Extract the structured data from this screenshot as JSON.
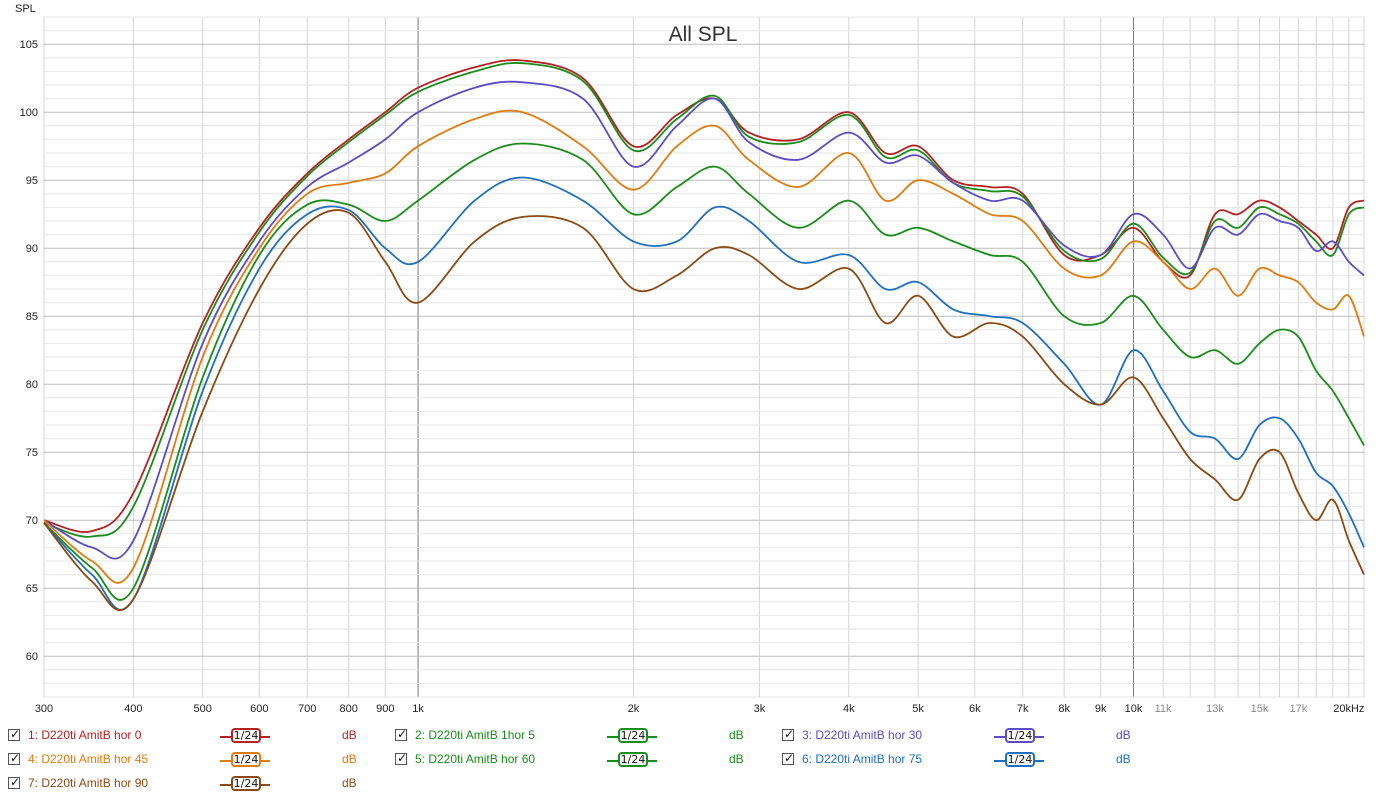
{
  "chart_data": {
    "type": "line",
    "title": "All SPL",
    "ylabel": "SPL",
    "xlabel": "",
    "x_scale": "log",
    "xlim": [
      300,
      21000
    ],
    "ylim": [
      57,
      107
    ],
    "grid": true,
    "y_ticks": [
      "60",
      "65",
      "70",
      "75",
      "80",
      "85",
      "90",
      "95",
      "100",
      "105"
    ],
    "x_ticks": [
      {
        "f": 300,
        "label": "300"
      },
      {
        "f": 400,
        "label": "400"
      },
      {
        "f": 500,
        "label": "500"
      },
      {
        "f": 600,
        "label": "600"
      },
      {
        "f": 700,
        "label": "700"
      },
      {
        "f": 800,
        "label": "800"
      },
      {
        "f": 900,
        "label": "900"
      },
      {
        "f": 1000,
        "label": "1k"
      },
      {
        "f": 2000,
        "label": "2k"
      },
      {
        "f": 3000,
        "label": "3k"
      },
      {
        "f": 4000,
        "label": "4k"
      },
      {
        "f": 5000,
        "label": "5k"
      },
      {
        "f": 6000,
        "label": "6k"
      },
      {
        "f": 7000,
        "label": "7k"
      },
      {
        "f": 8000,
        "label": "8k"
      },
      {
        "f": 9000,
        "label": "9k"
      },
      {
        "f": 10000,
        "label": "10k"
      },
      {
        "f": 11000,
        "label": "11k"
      },
      {
        "f": 13000,
        "label": "13k"
      },
      {
        "f": 15000,
        "label": "15k"
      },
      {
        "f": 17000,
        "label": "17k"
      },
      {
        "f": 20000,
        "label": "20kHz"
      }
    ],
    "x": [
      300,
      350,
      400,
      500,
      600,
      700,
      800,
      900,
      1000,
      1200,
      1400,
      1700,
      2000,
      2300,
      2600,
      2900,
      3400,
      4000,
      4500,
      5000,
      5600,
      6300,
      7000,
      8000,
      9000,
      10000,
      11000,
      12000,
      13000,
      14000,
      15000,
      16000,
      17000,
      18000,
      19000,
      20000,
      21000
    ],
    "series": [
      {
        "name": "1: D220ti AmitB hor 0",
        "color": "#b22222",
        "values": [
          70.0,
          69.2,
          72.0,
          84.5,
          91.5,
          95.5,
          98.0,
          100.0,
          101.8,
          103.3,
          103.8,
          102.5,
          97.5,
          99.8,
          101.0,
          98.5,
          98.0,
          100.0,
          97.0,
          97.5,
          95.0,
          94.5,
          94.0,
          89.5,
          89.5,
          91.5,
          89.0,
          88.0,
          92.5,
          92.5,
          93.5,
          93.0,
          92.0,
          91.0,
          90.0,
          93.0,
          93.5
        ]
      },
      {
        "name": "2: D220ti AmitB 1hor 5",
        "color": "#1a8c1a",
        "values": [
          69.8,
          68.8,
          71.0,
          84.0,
          91.2,
          95.3,
          97.8,
          99.8,
          101.5,
          103.0,
          103.6,
          102.3,
          97.2,
          99.5,
          101.2,
          98.2,
          97.8,
          99.8,
          96.7,
          97.2,
          94.8,
          94.2,
          93.8,
          89.8,
          89.2,
          91.8,
          89.3,
          88.2,
          92.0,
          91.5,
          93.0,
          92.5,
          91.8,
          90.5,
          89.5,
          92.5,
          93.0
        ]
      },
      {
        "name": "3: D220ti AmitB hor 30",
        "color": "#5b4cc4",
        "values": [
          70.0,
          68.0,
          68.5,
          83.0,
          90.5,
          94.5,
          96.3,
          98.0,
          100.0,
          101.8,
          102.2,
          101.0,
          96.0,
          99.0,
          101.0,
          97.8,
          96.5,
          98.5,
          96.3,
          96.8,
          94.8,
          93.5,
          93.5,
          90.2,
          89.5,
          92.5,
          91.0,
          88.5,
          91.5,
          91.0,
          92.5,
          92.0,
          91.5,
          89.8,
          90.5,
          89.0,
          88.0
        ]
      },
      {
        "name": "4: D220ti AmitB hor 45",
        "color": "#e07b10",
        "values": [
          70.0,
          67.0,
          66.5,
          82.0,
          90.0,
          94.0,
          94.8,
          95.5,
          97.5,
          99.5,
          100.0,
          97.5,
          94.3,
          97.5,
          99.0,
          96.5,
          94.5,
          97.0,
          93.5,
          95.0,
          94.0,
          92.5,
          92.0,
          88.5,
          88.0,
          90.5,
          89.0,
          87.0,
          88.5,
          86.5,
          88.5,
          88.0,
          87.5,
          86.0,
          85.5,
          86.5,
          83.5
        ]
      },
      {
        "name": "5: D220ti AmitB  hor 60",
        "color": "#1a8c1a",
        "values": [
          69.8,
          66.5,
          65.0,
          80.5,
          89.5,
          93.2,
          93.2,
          92.0,
          93.5,
          96.5,
          97.7,
          96.5,
          92.5,
          94.5,
          96.0,
          94.0,
          91.5,
          93.5,
          91.0,
          91.5,
          90.5,
          89.5,
          89.0,
          85.0,
          84.5,
          86.5,
          84.0,
          82.0,
          82.5,
          81.5,
          83.0,
          84.0,
          83.5,
          81.0,
          79.5,
          77.5,
          75.5
        ]
      },
      {
        "name": "6: D220ti AmitB hor 75",
        "color": "#1e6fbf",
        "values": [
          69.8,
          66.0,
          64.2,
          79.5,
          88.5,
          92.5,
          92.8,
          90.0,
          89.0,
          93.5,
          95.2,
          93.5,
          90.5,
          90.5,
          93.0,
          92.0,
          89.0,
          89.5,
          87.0,
          87.5,
          85.5,
          85.0,
          84.5,
          81.5,
          78.5,
          82.5,
          79.5,
          76.5,
          76.0,
          74.5,
          77.0,
          77.5,
          76.0,
          73.5,
          72.5,
          70.5,
          68.0
        ]
      },
      {
        "name": "7: D220ti AmitB hor 90",
        "color": "#8b4a14",
        "values": [
          69.8,
          65.5,
          64.2,
          78.0,
          87.0,
          91.8,
          92.6,
          89.0,
          86.0,
          90.5,
          92.3,
          91.5,
          87.0,
          88.0,
          90.0,
          89.5,
          87.0,
          88.5,
          84.5,
          86.5,
          83.5,
          84.5,
          83.5,
          80.0,
          78.5,
          80.5,
          77.5,
          74.5,
          73.0,
          71.5,
          74.5,
          75.0,
          72.0,
          70.0,
          71.5,
          68.5,
          66.0
        ]
      }
    ]
  },
  "legend": [
    {
      "label": "1: D220ti AmitB hor 0",
      "smooth": "1/24",
      "unit": "dB",
      "color": "#b22222"
    },
    {
      "label": "2: D220ti AmitB 1hor 5",
      "smooth": "1/24",
      "unit": "dB",
      "color": "#1a8c1a"
    },
    {
      "label": "3: D220ti AmitB hor 30",
      "smooth": "1/24",
      "unit": "dB",
      "color": "#5b4cc4"
    },
    {
      "label": "4: D220ti AmitB hor 45",
      "smooth": "1/24",
      "unit": "dB",
      "color": "#e07b10"
    },
    {
      "label": "5: D220ti AmitB  hor 60",
      "smooth": "1/24",
      "unit": "dB",
      "color": "#1a8c1a"
    },
    {
      "label": "6: D220ti AmitB hor 75",
      "smooth": "1/24",
      "unit": "dB",
      "color": "#1e6fbf"
    },
    {
      "label": "7: D220ti AmitB hor 90",
      "smooth": "1/24",
      "unit": "dB",
      "color": "#8b4a14"
    }
  ]
}
